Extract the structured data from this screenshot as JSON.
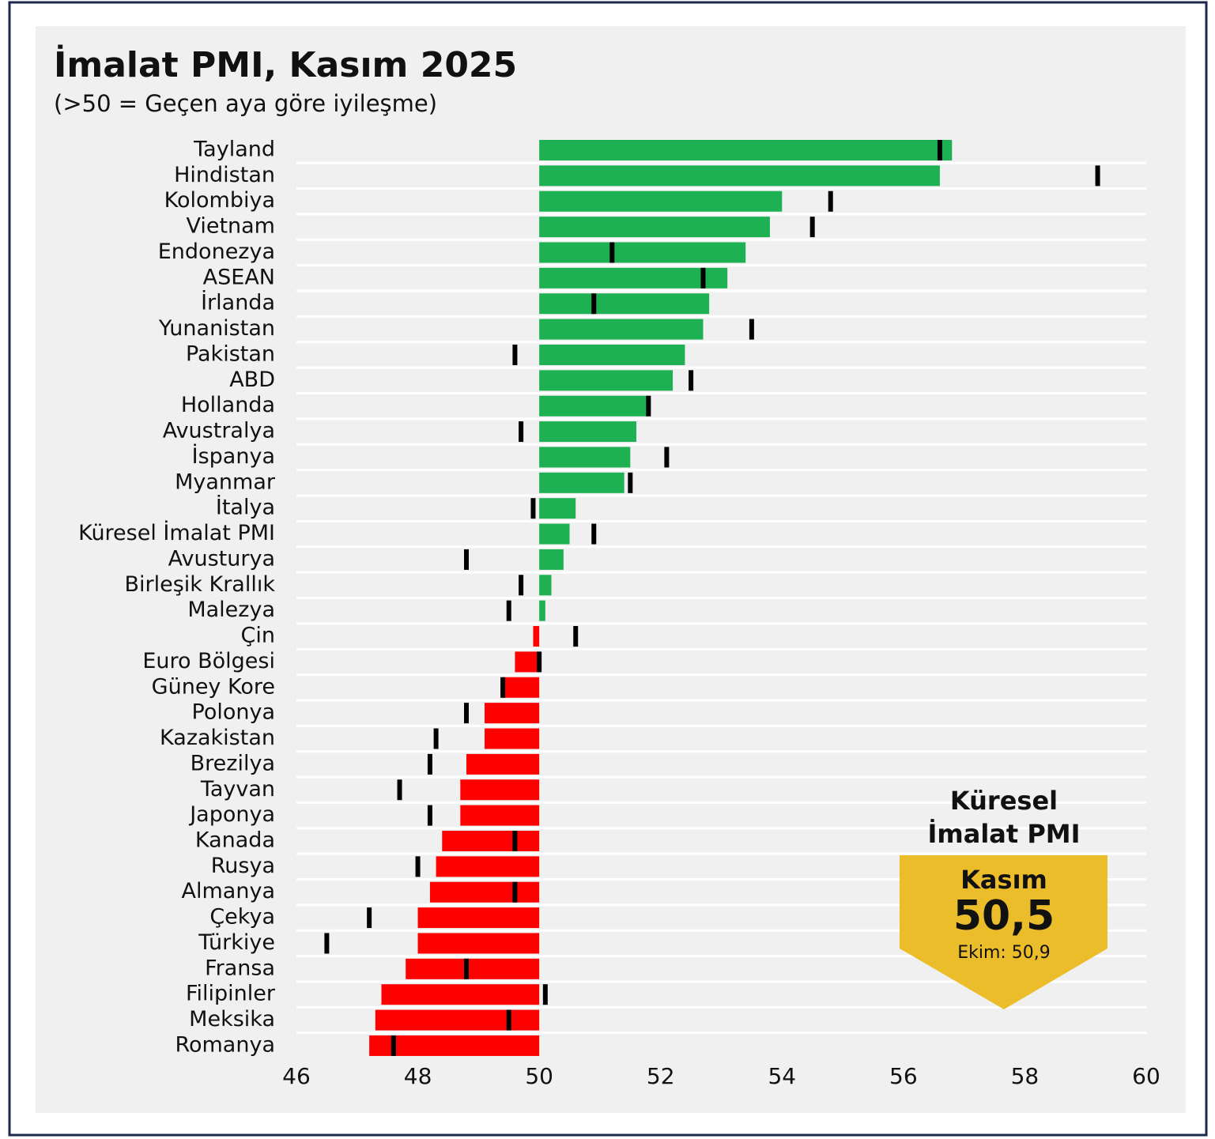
{
  "chart_data": {
    "type": "diverging_bar",
    "title": "İmalat PMI, Kasım 2025",
    "subtitle": "(>50 = Geçen aya göre iyileşme)",
    "categories": [
      "Tayland",
      "Hindistan",
      "Kolombiya",
      "Vietnam",
      "Endonezya",
      "ASEAN",
      "İrlanda",
      "Yunanistan",
      "Pakistan",
      "ABD",
      "Hollanda",
      "Avustralya",
      "İspanya",
      "Myanmar",
      "İtalya",
      "Küresel İmalat PMI",
      "Avusturya",
      "Birleşik Krallık",
      "Malezya",
      "Çin",
      "Euro Bölgesi",
      "Güney Kore",
      "Polonya",
      "Kazakistan",
      "Brezilya",
      "Tayvan",
      "Japonya",
      "Kanada",
      "Rusya",
      "Almanya",
      "Çekya",
      "Türkiye",
      "Fransa",
      "Filipinler",
      "Meksika",
      "Romanya"
    ],
    "values": [
      56.8,
      56.6,
      54.0,
      53.8,
      53.4,
      53.1,
      52.8,
      52.7,
      52.4,
      52.2,
      51.8,
      51.6,
      51.5,
      51.4,
      50.6,
      50.5,
      50.4,
      50.2,
      50.1,
      49.9,
      49.6,
      49.4,
      49.1,
      49.1,
      48.8,
      48.7,
      48.7,
      48.4,
      48.3,
      48.2,
      48.0,
      48.0,
      47.8,
      47.4,
      47.3,
      47.2
    ],
    "previous_values": [
      56.6,
      59.2,
      54.8,
      54.5,
      51.2,
      52.7,
      50.9,
      53.5,
      49.6,
      52.5,
      51.8,
      49.7,
      52.1,
      51.5,
      49.9,
      50.9,
      48.8,
      49.7,
      49.5,
      50.6,
      50.0,
      49.4,
      48.8,
      48.3,
      48.2,
      47.7,
      48.2,
      49.6,
      48.0,
      49.6,
      47.2,
      46.5,
      48.8,
      50.1,
      49.5,
      47.6
    ],
    "baseline": 50,
    "color_above": "#1db154",
    "color_below": "#ff0000",
    "marker_color": "#000000",
    "xlim": [
      46,
      60
    ],
    "xticks": [
      46,
      48,
      50,
      52,
      54,
      56,
      58,
      60
    ],
    "callout": {
      "heading": [
        "Küresel",
        "İmalat PMI"
      ],
      "label": "Kasım",
      "value": "50,5",
      "previous": "Ekim: 50,9",
      "color": "#ebbd2a"
    }
  }
}
